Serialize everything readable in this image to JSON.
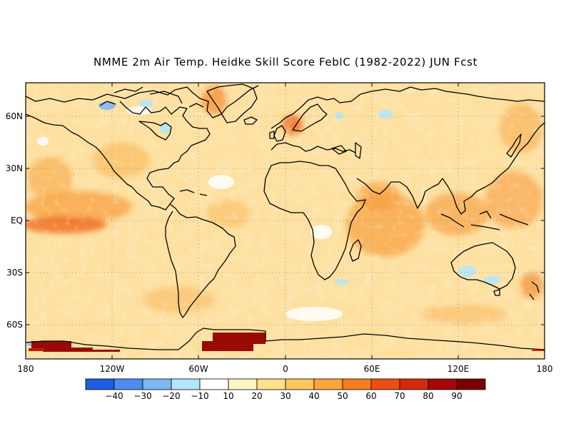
{
  "title": "NMME 2m Air Temp. Heidke Skill Score FebIC (1982-2022) JUN Fcst",
  "lat_labels": [
    "60N",
    "30N",
    "EQ",
    "30S",
    "60S"
  ],
  "lon_labels": [
    "180",
    "120W",
    "60W",
    "0",
    "60E",
    "120E",
    "180"
  ],
  "colorbar": {
    "labels": [
      "-40",
      "-30",
      "-20",
      "-10",
      "10",
      "20",
      "30",
      "40",
      "50",
      "60",
      "70",
      "80",
      "90"
    ],
    "colors": [
      "#1f5de0",
      "#4c8ef0",
      "#7db8f4",
      "#b3e6fb",
      "#ffffff",
      "#fff5c2",
      "#fee08a",
      "#fdc55a",
      "#fba53a",
      "#f57f1e",
      "#ee4e10",
      "#d22a0a",
      "#a80606",
      "#7a0000"
    ]
  },
  "map_colors": {
    "land_outline": "#000000",
    "grid_dots": "#888888",
    "background_base": "#fde3a6",
    "antarctic_high": "#9a0a05"
  }
}
